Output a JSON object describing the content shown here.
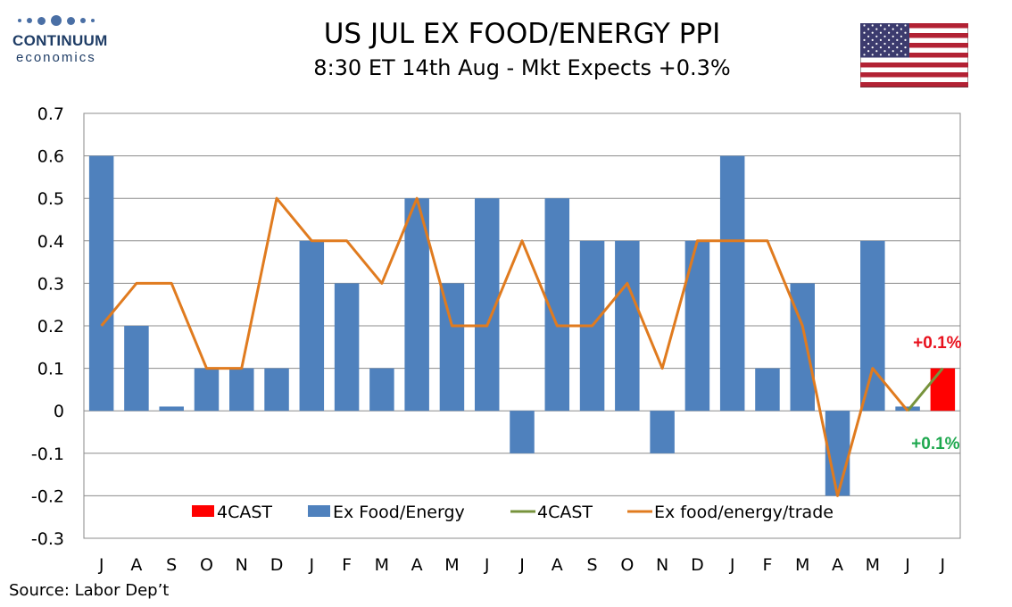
{
  "logo": {
    "name": "CONTINUUM",
    "sub": "economics"
  },
  "header": {
    "title": "US JUL EX FOOD/ENERGY PPI",
    "subtitle": "8:30 ET 14th Aug - Mkt Expects +0.3%"
  },
  "flag": {
    "icon": "us-flag-icon"
  },
  "source": "Source: Labor Dep’t",
  "colors": {
    "bar": "#4f81bd",
    "forecast_bar": "#ff0000",
    "line": "#e07b1f",
    "forecast_line": "#77933c",
    "label_red": "#e8111d",
    "label_green": "#1fa84f"
  },
  "chart_data": {
    "type": "bar",
    "categories": [
      "J",
      "A",
      "S",
      "O",
      "N",
      "D",
      "J",
      "F",
      "M",
      "A",
      "M",
      "J",
      "J",
      "A",
      "S",
      "O",
      "N",
      "D",
      "J",
      "F",
      "M",
      "A",
      "M",
      "J",
      "J"
    ],
    "ylim": [
      -0.3,
      0.7
    ],
    "yticks": [
      "0.7",
      "0.6",
      "0.5",
      "0.4",
      "0.3",
      "0.2",
      "0.1",
      "0",
      "-0.1",
      "-0.2",
      "-0.3"
    ],
    "ytick_values": [
      0.7,
      0.6,
      0.5,
      0.4,
      0.3,
      0.2,
      0.1,
      0,
      -0.1,
      -0.2,
      -0.3
    ],
    "grid": true,
    "legend_position": "bottom-inside",
    "series": [
      {
        "name": "4CAST",
        "kind": "bar",
        "values": [
          null,
          null,
          null,
          null,
          null,
          null,
          null,
          null,
          null,
          null,
          null,
          null,
          null,
          null,
          null,
          null,
          null,
          null,
          null,
          null,
          null,
          null,
          null,
          null,
          0.1
        ]
      },
      {
        "name": "Ex Food/Energy",
        "kind": "bar",
        "values": [
          0.6,
          0.2,
          0.01,
          0.1,
          0.1,
          0.1,
          0.4,
          0.3,
          0.1,
          0.5,
          0.3,
          0.5,
          -0.1,
          0.5,
          0.4,
          0.4,
          -0.1,
          0.4,
          0.6,
          0.1,
          0.3,
          -0.2,
          0.4,
          0.01,
          null
        ]
      },
      {
        "name": "4CAST",
        "kind": "line",
        "values": [
          null,
          null,
          null,
          null,
          null,
          null,
          null,
          null,
          null,
          null,
          null,
          null,
          null,
          null,
          null,
          null,
          null,
          null,
          null,
          null,
          null,
          null,
          null,
          0.0,
          0.1
        ]
      },
      {
        "name": "Ex food/energy/trade",
        "kind": "line",
        "values": [
          0.2,
          0.3,
          0.3,
          0.1,
          0.1,
          0.5,
          0.4,
          0.4,
          0.3,
          0.5,
          0.2,
          0.2,
          0.4,
          0.2,
          0.2,
          0.3,
          0.1,
          0.4,
          0.4,
          0.4,
          0.2,
          -0.2,
          0.1,
          0.0,
          null
        ]
      }
    ],
    "annotations": [
      {
        "text": "+0.1%",
        "color": "#e8111d",
        "series": "4CAST bar"
      },
      {
        "text": "+0.1%",
        "color": "#1fa84f",
        "series": "4CAST line"
      }
    ]
  }
}
